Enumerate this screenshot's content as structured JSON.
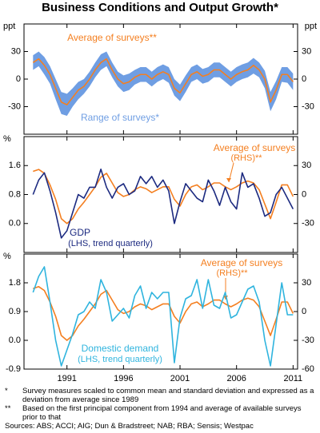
{
  "title": "Business Conditions and Output Growth*",
  "footnotes": [
    {
      "mark": "*",
      "text": "Survey measures scaled to common mean and standard deviation and expressed as a deviation from average since 1989"
    },
    {
      "mark": "**",
      "text": "Based on the first principal component from 1994 and average of available surveys prior to that"
    }
  ],
  "sources": "Sources: ABS; ACCI; AIG; Dun & Bradstreet; NAB; RBA; Sensis; Westpac",
  "chart_data": [
    {
      "type": "line",
      "y_label": "ppt",
      "y2_label": "ppt",
      "x": [
        1988,
        1988.5,
        1989,
        1989.5,
        1990,
        1990.5,
        1991,
        1991.5,
        1992,
        1992.5,
        1993,
        1993.5,
        1994,
        1994.5,
        1995,
        1995.5,
        1996,
        1996.5,
        1997,
        1997.5,
        1998,
        1998.5,
        1999,
        1999.5,
        2000,
        2000.5,
        2001,
        2001.5,
        2002,
        2002.5,
        2003,
        2003.5,
        2004,
        2004.5,
        2005,
        2005.5,
        2006,
        2006.5,
        2007,
        2007.5,
        2008,
        2008.5,
        2009,
        2009.5,
        2010,
        2010.5,
        2011
      ],
      "xlim": [
        1987.2,
        2011.4
      ],
      "ylim": [
        -60,
        60
      ],
      "yticks": [
        -30,
        0,
        30
      ],
      "y2lim": [
        -60,
        60
      ],
      "y2ticks": [
        -30,
        0,
        30
      ],
      "series": [
        {
          "name": "Range of surveys*",
          "color": "#6f9ee3",
          "axis": "y",
          "low": [
            10,
            14,
            5,
            -5,
            -22,
            -38,
            -40,
            -30,
            -22,
            -16,
            -8,
            2,
            10,
            14,
            2,
            -8,
            -14,
            -12,
            -6,
            -3,
            -3,
            -8,
            -3,
            0,
            -4,
            -18,
            -24,
            -14,
            -3,
            0,
            -5,
            -3,
            2,
            2,
            -3,
            -8,
            -3,
            0,
            2,
            6,
            2,
            -10,
            -35,
            -22,
            -3,
            -4,
            -12
          ],
          "high": [
            26,
            30,
            24,
            14,
            0,
            -14,
            -16,
            -10,
            -3,
            0,
            8,
            18,
            27,
            30,
            18,
            8,
            4,
            6,
            10,
            13,
            13,
            8,
            13,
            16,
            13,
            0,
            -6,
            4,
            13,
            16,
            11,
            13,
            18,
            18,
            13,
            8,
            13,
            16,
            18,
            23,
            18,
            9,
            -14,
            -2,
            13,
            13,
            6
          ]
        },
        {
          "name": "Average of surveys**",
          "color": "#f47f20",
          "axis": "y",
          "values": [
            18,
            22,
            15,
            5,
            -10,
            -25,
            -28,
            -20,
            -12,
            -8,
            0,
            10,
            18,
            22,
            10,
            0,
            -5,
            -3,
            2,
            5,
            5,
            0,
            5,
            8,
            5,
            -10,
            -15,
            -5,
            5,
            8,
            3,
            5,
            10,
            10,
            5,
            0,
            5,
            8,
            10,
            15,
            10,
            0,
            -25,
            -12,
            5,
            5,
            -3
          ]
        }
      ]
    },
    {
      "type": "line",
      "y_label": "%",
      "x": [
        1988,
        1988.5,
        1989,
        1989.5,
        1990,
        1990.5,
        1991,
        1991.5,
        1992,
        1992.5,
        1993,
        1993.5,
        1994,
        1994.5,
        1995,
        1995.5,
        1996,
        1996.5,
        1997,
        1997.5,
        1998,
        1998.5,
        1999,
        1999.5,
        2000,
        2000.5,
        2001,
        2001.5,
        2002,
        2002.5,
        2003,
        2003.5,
        2004,
        2004.5,
        2005,
        2005.5,
        2006,
        2006.5,
        2007,
        2007.5,
        2008,
        2008.5,
        2009,
        2009.5,
        2010,
        2010.5,
        2011
      ],
      "xlim": [
        1987.2,
        2011.4
      ],
      "ylim": [
        -0.8,
        2.4
      ],
      "yticks": [
        {
          "value": 0,
          "label": "0.0"
        },
        0.8,
        1.6
      ],
      "y2lim": [
        -60,
        60
      ],
      "y2ticks": [
        -30,
        0,
        30
      ],
      "series": [
        {
          "name": "Average of surveys",
          "name_note": "(RHS)**",
          "color": "#f47f20",
          "axis": "y2",
          "values": [
            24,
            26,
            22,
            10,
            -5,
            -25,
            -30,
            -25,
            -15,
            -8,
            0,
            8,
            18,
            22,
            12,
            2,
            -2,
            0,
            5,
            8,
            6,
            2,
            5,
            8,
            8,
            -5,
            -12,
            0,
            8,
            10,
            5,
            8,
            12,
            12,
            8,
            5,
            8,
            12,
            14,
            12,
            5,
            -10,
            -25,
            -8,
            10,
            10,
            -2
          ]
        },
        {
          "name": "GDP",
          "name_note": "(LHS, trend quarterly)",
          "color": "#1c2a80",
          "axis": "y",
          "values": [
            0.8,
            1.2,
            1.4,
            0.9,
            0.3,
            -0.4,
            -0.2,
            0.3,
            0.8,
            0.7,
            1.0,
            1.0,
            1.5,
            1.0,
            0.7,
            1.0,
            1.1,
            0.8,
            0.9,
            1.3,
            1.1,
            1.3,
            1.0,
            1.2,
            0.9,
            0.0,
            0.6,
            1.1,
            0.9,
            0.7,
            0.6,
            1.2,
            0.9,
            0.5,
            1.0,
            0.6,
            0.4,
            1.4,
            1.0,
            1.1,
            0.7,
            0.2,
            0.3,
            0.8,
            1.0,
            0.7,
            0.4
          ]
        }
      ]
    },
    {
      "type": "line",
      "y_label": "%",
      "x": [
        1988,
        1988.5,
        1989,
        1989.5,
        1990,
        1990.5,
        1991,
        1991.5,
        1992,
        1992.5,
        1993,
        1993.5,
        1994,
        1994.5,
        1995,
        1995.5,
        1996,
        1996.5,
        1997,
        1997.5,
        1998,
        1998.5,
        1999,
        1999.5,
        2000,
        2000.5,
        2001,
        2001.5,
        2002,
        2002.5,
        2003,
        2003.5,
        2004,
        2004.5,
        2005,
        2005.5,
        2006,
        2006.5,
        2007,
        2007.5,
        2008,
        2008.5,
        2009,
        2009.5,
        2010,
        2010.5,
        2011
      ],
      "xlim": [
        1987.2,
        2011.4
      ],
      "xticks": [
        1991,
        1996,
        2001,
        2006,
        2011
      ],
      "ylim": [
        -0.9,
        2.7
      ],
      "yticks": [
        -0.9,
        {
          "value": 0,
          "label": "0.0"
        },
        0.9,
        1.8
      ],
      "y2lim": [
        -60,
        60
      ],
      "y2ticks": [
        -60,
        -30,
        0,
        30
      ],
      "series": [
        {
          "name": "Average of surveys",
          "name_note": "(RHS)**",
          "color": "#f47f20",
          "axis": "y2",
          "values": [
            24,
            26,
            22,
            10,
            -5,
            -25,
            -30,
            -25,
            -15,
            -8,
            0,
            8,
            18,
            22,
            12,
            2,
            -2,
            0,
            5,
            8,
            6,
            2,
            5,
            8,
            8,
            -5,
            -12,
            0,
            8,
            10,
            5,
            8,
            12,
            12,
            8,
            5,
            8,
            12,
            14,
            12,
            5,
            -10,
            -25,
            -8,
            10,
            10,
            -2
          ]
        },
        {
          "name": "Domestic demand",
          "name_note": "(LHS, trend quarterly)",
          "color": "#2fb4de",
          "axis": "y",
          "values": [
            1.5,
            2.0,
            2.3,
            1.2,
            0.0,
            -0.8,
            -0.3,
            0.2,
            0.8,
            0.9,
            1.2,
            1.0,
            1.9,
            1.5,
            0.6,
            0.8,
            1.0,
            0.7,
            1.4,
            1.7,
            1.0,
            1.5,
            1.3,
            1.5,
            1.5,
            -0.7,
            0.7,
            1.3,
            1.4,
            1.9,
            1.0,
            1.9,
            1.1,
            1.0,
            1.5,
            0.7,
            0.8,
            1.2,
            1.6,
            1.7,
            1.2,
            0.0,
            -0.8,
            0.5,
            1.8,
            0.8,
            0.8
          ]
        }
      ]
    }
  ]
}
